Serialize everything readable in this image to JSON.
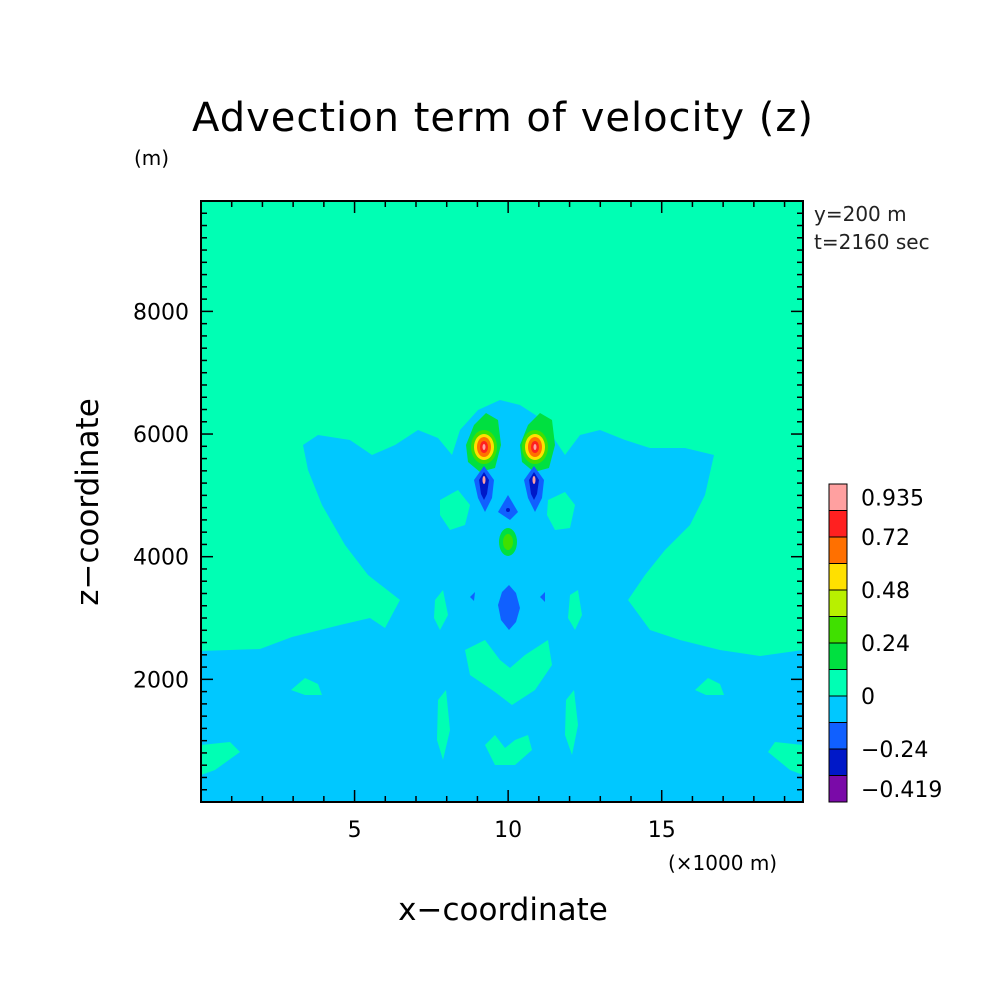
{
  "chart_data": {
    "type": "heatmap",
    "subtype": "filled-contour",
    "title": "Advection term of velocity (z)",
    "xlabel": "x−coordinate",
    "ylabel": "z−coordinate",
    "x_unit": "(×1000 m)",
    "y_unit": "(m)",
    "xlim": [
      0,
      19.6
    ],
    "ylim": [
      0,
      9800
    ],
    "x_ticks": [
      "5",
      "10",
      "15"
    ],
    "x_tick_values": [
      5,
      10,
      15
    ],
    "y_ticks": [
      "2000",
      "4000",
      "6000",
      "8000"
    ],
    "y_tick_values": [
      2000,
      4000,
      6000,
      8000
    ],
    "annotations": [
      "y=200 m",
      "t=2160 sec"
    ],
    "colorbar": {
      "labels": [
        "0.935",
        "0.72",
        "0.48",
        "0.24",
        "0",
        "−0.24",
        "−0.419"
      ],
      "label_values": [
        0.935,
        0.72,
        0.48,
        0.24,
        0,
        -0.24,
        -0.419
      ],
      "levels": [
        -0.419,
        -0.36,
        -0.24,
        -0.12,
        0,
        0.12,
        0.24,
        0.36,
        0.48,
        0.6,
        0.72,
        0.84,
        0.935
      ],
      "colors": [
        "#7a0aa8",
        "#0018c8",
        "#1060ff",
        "#00c8ff",
        "#00ffb4",
        "#00e040",
        "#40e000",
        "#b8f000",
        "#ffe000",
        "#ff7000",
        "#ff2020",
        "#ffa0a0"
      ]
    },
    "background_value_range": [
      0,
      0.12
    ],
    "contour_regions": [
      {
        "label": "negative (−0.12–0)",
        "color": "#00c8ff",
        "extent_x": [
          0,
          19.6
        ],
        "extent_z": [
          0,
          6200
        ]
      },
      {
        "label": "positive cores",
        "color": "#ff2020",
        "centers_x": [
          9.3,
          10.9
        ],
        "center_z": 5900
      },
      {
        "label": "negative cores",
        "color": "#0018c8",
        "centers_x": [
          9.3,
          10.9,
          10.1
        ],
        "center_z": [
          5400,
          5400,
          4800
        ]
      },
      {
        "label": "negative core",
        "color": "#1060ff",
        "center_x": 10.1,
        "center_z": 3300
      }
    ]
  }
}
